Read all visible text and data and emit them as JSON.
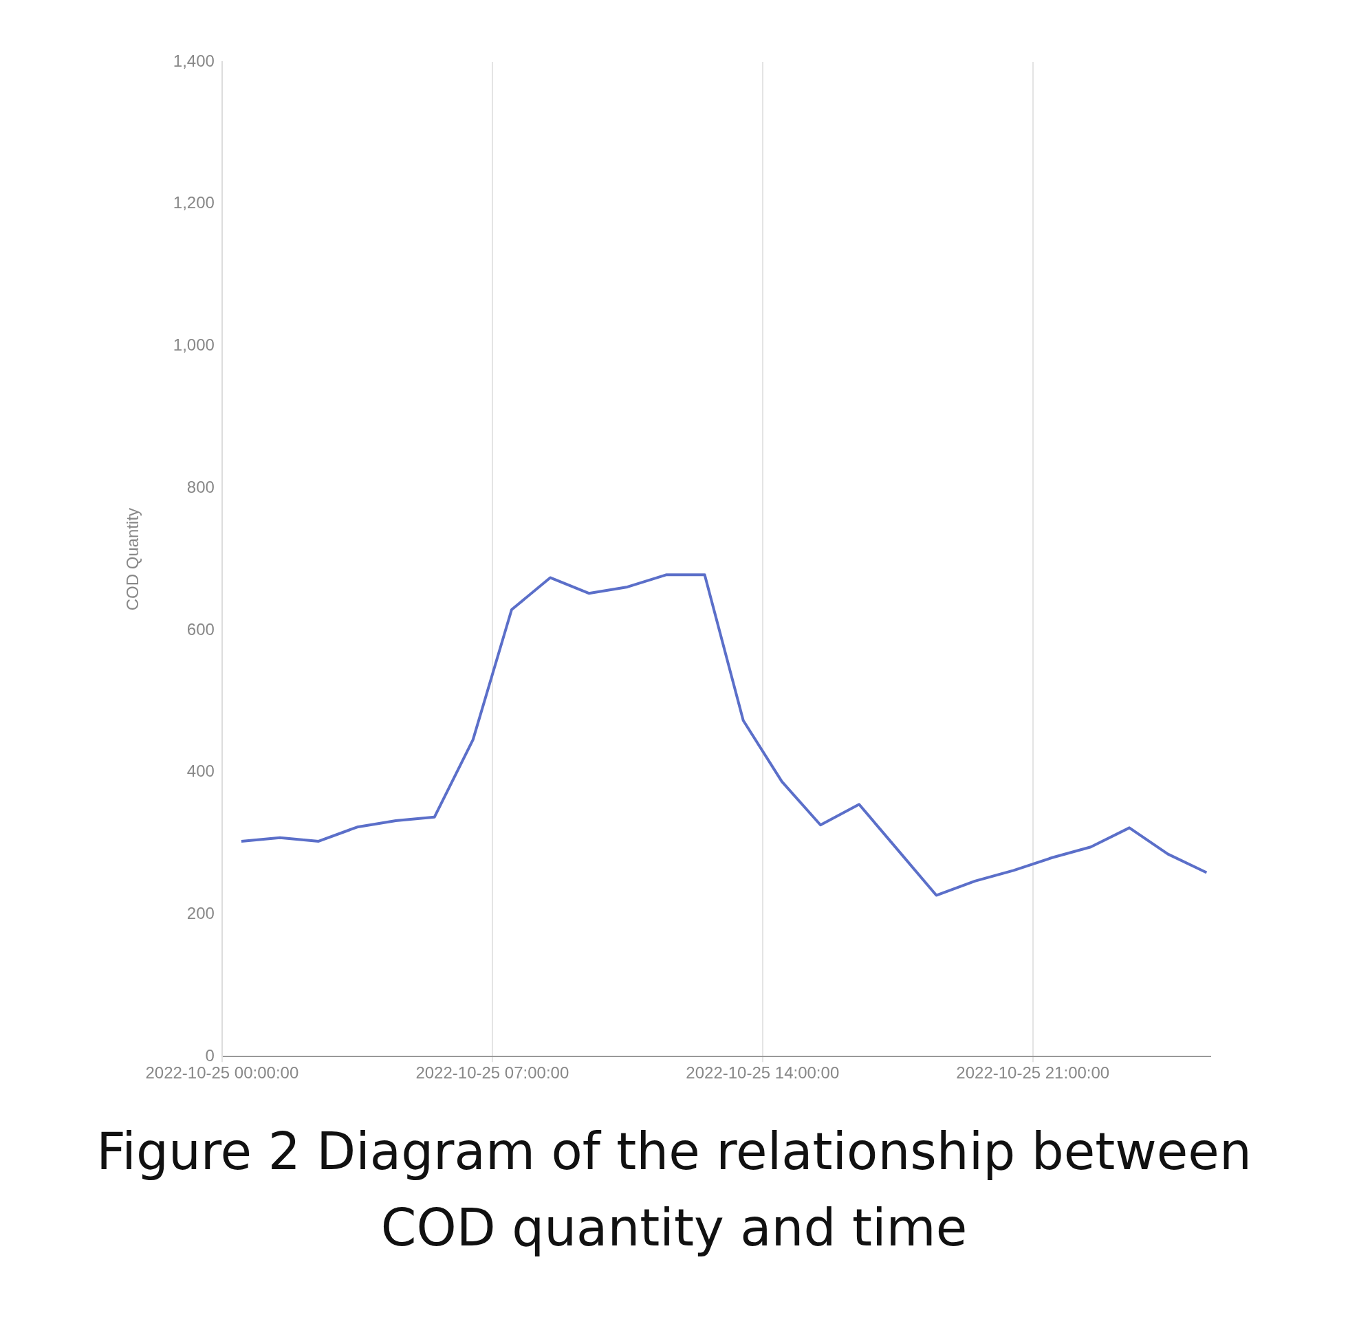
{
  "chart_data": {
    "type": "line",
    "title": "Figure 2 Diagram of the relationship between COD quantity and time",
    "ylabel": "COD Quantity",
    "x": [
      "2022-10-25T00:30",
      "2022-10-25T01:30",
      "2022-10-25T02:30",
      "2022-10-25T03:30",
      "2022-10-25T04:30",
      "2022-10-25T05:30",
      "2022-10-25T06:30",
      "2022-10-25T07:30",
      "2022-10-25T08:30",
      "2022-10-25T09:30",
      "2022-10-25T10:30",
      "2022-10-25T11:30",
      "2022-10-25T12:30",
      "2022-10-25T13:30",
      "2022-10-25T14:30",
      "2022-10-25T15:30",
      "2022-10-25T16:30",
      "2022-10-25T17:30",
      "2022-10-25T18:30",
      "2022-10-25T19:30",
      "2022-10-25T20:30",
      "2022-10-25T21:30",
      "2022-10-25T22:30",
      "2022-10-25T23:30",
      "2022-10-26T00:30",
      "2022-10-26T01:30"
    ],
    "values": [
      303,
      308,
      303,
      323,
      332,
      337,
      446,
      629,
      674,
      652,
      661,
      678,
      678,
      473,
      387,
      326,
      355,
      291,
      227,
      247,
      262,
      280,
      295,
      322,
      285,
      259
    ],
    "color": "#5b6fc9",
    "marker": "none",
    "line_style": "solid",
    "grid": "x",
    "legend": false,
    "xlim": [
      "2022-10-25T00:00",
      "2022-10-26T01:36"
    ],
    "xticks": [
      {
        "value": "2022-10-25T00:00",
        "label": "2022-10-25 00:00:00"
      },
      {
        "value": "2022-10-25T07:00",
        "label": "2022-10-25 07:00:00"
      },
      {
        "value": "2022-10-25T14:00",
        "label": "2022-10-25 14:00:00"
      },
      {
        "value": "2022-10-25T21:00",
        "label": "2022-10-25 21:00:00"
      }
    ],
    "ylim": [
      0,
      1400
    ],
    "yticks": [
      0,
      200,
      400,
      600,
      800,
      {
        "value": 1000,
        "label": "1,000"
      },
      {
        "value": 1200,
        "label": "1,200"
      },
      {
        "value": 1400,
        "label": "1,400"
      }
    ]
  }
}
